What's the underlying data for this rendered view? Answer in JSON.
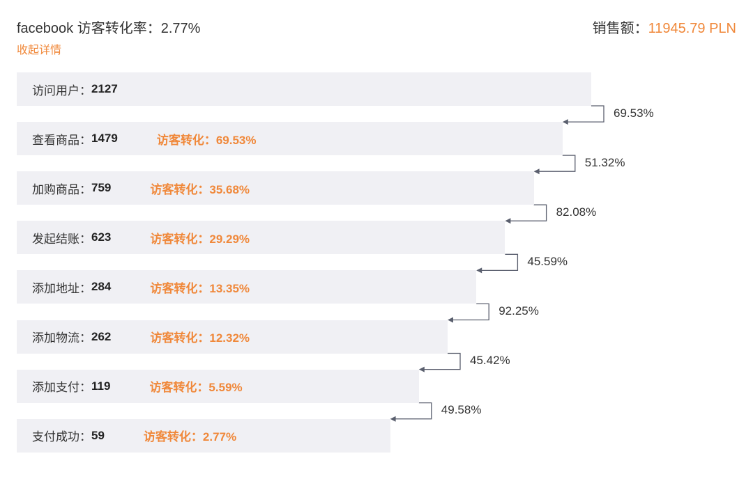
{
  "header": {
    "title": "facebook 访客转化率：2.77%",
    "toggle": "收起详情",
    "sales_label": "销售额：",
    "sales_value": "11945.79 PLN"
  },
  "steps": [
    {
      "label": "访问用户：",
      "count": "2127"
    },
    {
      "label": "查看商品：",
      "count": "1479",
      "conversion": "访客转化：69.53%"
    },
    {
      "label": "加购商品：",
      "count": "759",
      "conversion": "访客转化：35.68%"
    },
    {
      "label": "发起结账：",
      "count": "623",
      "conversion": "访客转化：29.29%"
    },
    {
      "label": "添加地址：",
      "count": "284",
      "conversion": "访客转化：13.35%"
    },
    {
      "label": "添加物流：",
      "count": "262",
      "conversion": "访客转化：12.32%"
    },
    {
      "label": "添加支付：",
      "count": "119",
      "conversion": "访客转化：5.59%"
    },
    {
      "label": "支付成功：",
      "count": "59",
      "conversion": "访客转化：2.77%"
    }
  ],
  "step_rates": [
    "69.53%",
    "51.32%",
    "82.08%",
    "45.59%",
    "92.25%",
    "45.42%",
    "49.58%"
  ]
}
